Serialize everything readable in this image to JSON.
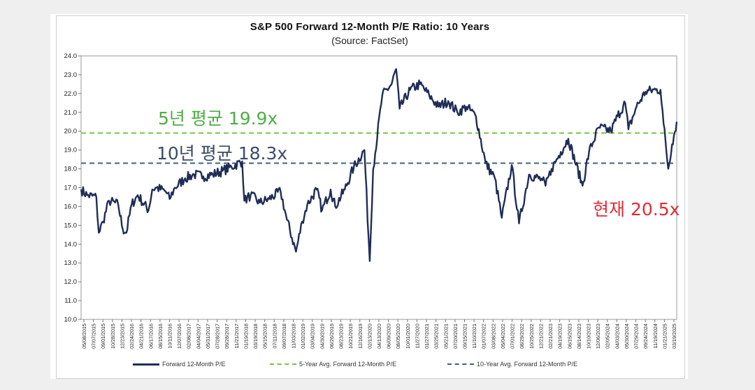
{
  "chart_data": {
    "type": "line",
    "title": "S&P 500 Forward 12-Month P/E Ratio: 10 Years",
    "subtitle": "(Source: FactSet)",
    "ylim": [
      10.0,
      24.0
    ],
    "y_ticks": [
      "24.0",
      "23.0",
      "22.0",
      "21.0",
      "20.0",
      "19.0",
      "18.0",
      "17.0",
      "16.0",
      "15.0",
      "14.0",
      "13.0",
      "12.0",
      "11.0",
      "10.0"
    ],
    "x_ticks": [
      "05/08/2015",
      "07/07/2015",
      "09/01/2015",
      "10/28/2015",
      "12/23/2015",
      "02/24/2016",
      "04/21/2016",
      "06/17/2016",
      "08/15/2016",
      "10/11/2016",
      "12/07/2016",
      "02/08/2017",
      "04/04/2017",
      "05/31/2017",
      "07/28/2017",
      "09/28/2017",
      "11/21/2017",
      "01/19/2018",
      "03/19/2018",
      "05/15/2018",
      "07/11/2018",
      "09/07/2018",
      "11/03/2018",
      "01/02/2019",
      "03/04/2019",
      "04/30/2019",
      "06/26/2019",
      "08/23/2019",
      "10/21/2019",
      "12/16/2019",
      "02/13/2020",
      "04/13/2020",
      "06/09/2020",
      "08/05/2020",
      "10/01/2020",
      "11/27/2020",
      "01/27/2021",
      "03/25/2021",
      "05/21/2021",
      "07/20/2021",
      "09/15/2021",
      "11/10/2021",
      "01/07/2022",
      "03/08/2022",
      "05/04/2022",
      "07/01/2022",
      "08/29/2022",
      "10/25/2022",
      "12/21/2022",
      "02/21/2023",
      "04/19/2023",
      "06/15/2023",
      "08/14/2023",
      "10/10/2023",
      "12/06/2023",
      "02/05/2024",
      "04/03/2024",
      "05/30/2024",
      "07/29/2024",
      "09/24/2024",
      "11/19/2024",
      "01/21/2025",
      "03/19/2025"
    ],
    "grid": false,
    "legend_position": "bottom",
    "series": [
      {
        "name": "Forward 12-Month P/E",
        "color": "#1f2d56",
        "points": [
          [
            "2015-05-08",
            16.9
          ],
          [
            "2015-06-15",
            16.6
          ],
          [
            "2015-08-10",
            16.5
          ],
          [
            "2015-08-25",
            14.6
          ],
          [
            "2015-09-20",
            15.2
          ],
          [
            "2015-10-28",
            16.3
          ],
          [
            "2015-12-23",
            16.1
          ],
          [
            "2016-01-20",
            14.8
          ],
          [
            "2016-02-11",
            14.6
          ],
          [
            "2016-03-15",
            16.1
          ],
          [
            "2016-04-21",
            16.6
          ],
          [
            "2016-06-27",
            15.8
          ],
          [
            "2016-07-20",
            16.9
          ],
          [
            "2016-08-15",
            17.0
          ],
          [
            "2016-10-11",
            16.8
          ],
          [
            "2016-11-04",
            16.4
          ],
          [
            "2016-12-07",
            17.0
          ],
          [
            "2017-02-08",
            17.5
          ],
          [
            "2017-04-04",
            17.7
          ],
          [
            "2017-05-31",
            17.6
          ],
          [
            "2017-07-28",
            17.7
          ],
          [
            "2017-09-28",
            17.9
          ],
          [
            "2017-11-21",
            18.1
          ],
          [
            "2018-01-26",
            18.4
          ],
          [
            "2018-02-08",
            16.3
          ],
          [
            "2018-03-19",
            16.6
          ],
          [
            "2018-05-15",
            16.2
          ],
          [
            "2018-07-11",
            16.4
          ],
          [
            "2018-09-20",
            16.8
          ],
          [
            "2018-10-29",
            15.3
          ],
          [
            "2018-12-24",
            13.6
          ],
          [
            "2019-01-31",
            15.2
          ],
          [
            "2019-03-04",
            16.1
          ],
          [
            "2019-04-30",
            16.9
          ],
          [
            "2019-06-03",
            15.8
          ],
          [
            "2019-07-26",
            16.9
          ],
          [
            "2019-08-23",
            16.0
          ],
          [
            "2019-10-21",
            16.9
          ],
          [
            "2019-12-16",
            18.1
          ],
          [
            "2020-02-19",
            19.0
          ],
          [
            "2020-03-23",
            13.1
          ],
          [
            "2020-04-13",
            18.0
          ],
          [
            "2020-06-08",
            21.9
          ],
          [
            "2020-08-05",
            22.5
          ],
          [
            "2020-09-02",
            23.3
          ],
          [
            "2020-09-23",
            21.2
          ],
          [
            "2020-11-27",
            22.2
          ],
          [
            "2021-01-27",
            22.5
          ],
          [
            "2021-03-25",
            21.9
          ],
          [
            "2021-05-21",
            21.3
          ],
          [
            "2021-07-20",
            21.6
          ],
          [
            "2021-09-15",
            21.0
          ],
          [
            "2021-11-10",
            21.3
          ],
          [
            "2022-01-07",
            20.8
          ],
          [
            "2022-03-08",
            18.3
          ],
          [
            "2022-05-04",
            17.5
          ],
          [
            "2022-06-16",
            15.4
          ],
          [
            "2022-08-16",
            18.2
          ],
          [
            "2022-09-30",
            15.1
          ],
          [
            "2022-12-01",
            17.7
          ],
          [
            "2023-02-21",
            17.4
          ],
          [
            "2023-03-13",
            17.1
          ],
          [
            "2023-04-19",
            18.0
          ],
          [
            "2023-06-15",
            18.9
          ],
          [
            "2023-07-31",
            19.6
          ],
          [
            "2023-10-27",
            17.1
          ],
          [
            "2023-12-06",
            18.9
          ],
          [
            "2024-02-05",
            20.2
          ],
          [
            "2024-04-19",
            20.0
          ],
          [
            "2024-05-30",
            20.8
          ],
          [
            "2024-07-16",
            21.5
          ],
          [
            "2024-08-05",
            20.1
          ],
          [
            "2024-09-24",
            21.3
          ],
          [
            "2024-11-19",
            22.1
          ],
          [
            "2025-01-21",
            22.2
          ],
          [
            "2025-02-19",
            22.2
          ],
          [
            "2025-03-10",
            20.4
          ],
          [
            "2025-04-08",
            18.0
          ],
          [
            "2025-05-01",
            19.3
          ],
          [
            "2025-05-30",
            20.5
          ]
        ]
      },
      {
        "name": "5-Year Avg. Forward 12-Month P/E",
        "color": "#7cc242",
        "dashed": true,
        "value": 19.9
      },
      {
        "name": "10-Year Avg. Forward 12-Month P/E",
        "color": "#44607e",
        "dashed": true,
        "value": 18.3
      }
    ],
    "annotations": [
      {
        "label": "5년 평균 19.9x",
        "color": "#4caf45"
      },
      {
        "label": "10년 평균 18.3x",
        "color": "#3a4c66"
      },
      {
        "label": "현재 20.5x",
        "color": "#e32b36"
      }
    ]
  }
}
